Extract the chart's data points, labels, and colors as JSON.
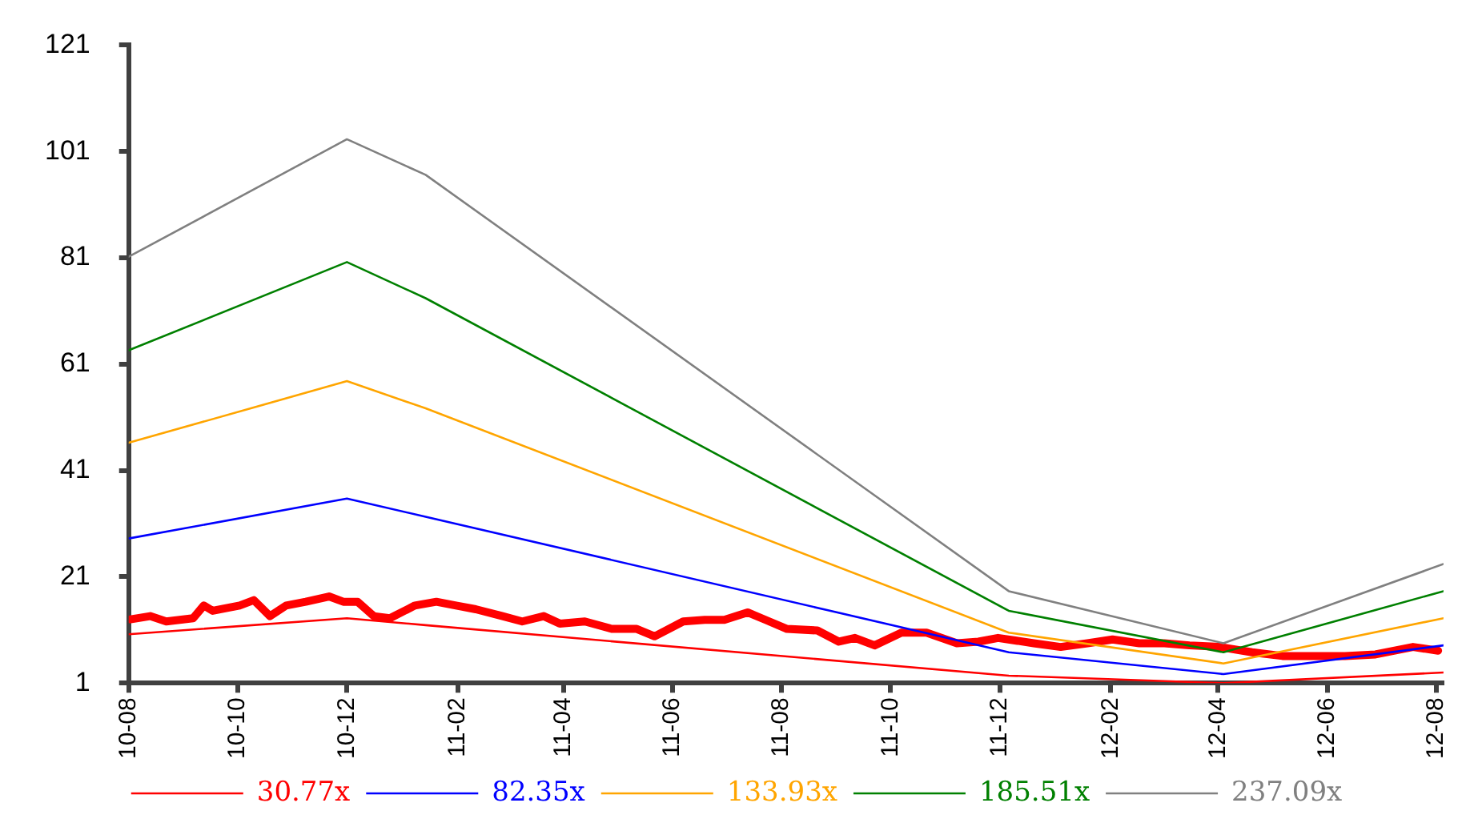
{
  "chart_data": {
    "type": "line",
    "legend": "bottom",
    "grid": false,
    "marker": "none",
    "line_style": "solid",
    "xlim": [
      "2010-08-01",
      "2012-08-05"
    ],
    "ylim": [
      1,
      121
    ],
    "yticks": [
      1,
      21,
      41,
      61,
      81,
      101,
      121
    ],
    "xticks": [
      {
        "value": "2010-08-01",
        "label": "10-08"
      },
      {
        "value": "2010-10-01",
        "label": "10-10"
      },
      {
        "value": "2010-12-01",
        "label": "10-12"
      },
      {
        "value": "2011-02-01",
        "label": "11-02"
      },
      {
        "value": "2011-04-01",
        "label": "11-04"
      },
      {
        "value": "2011-06-01",
        "label": "11-06"
      },
      {
        "value": "2011-08-01",
        "label": "11-08"
      },
      {
        "value": "2011-10-01",
        "label": "11-10"
      },
      {
        "value": "2011-12-01",
        "label": "11-12"
      },
      {
        "value": "2012-02-01",
        "label": "12-02"
      },
      {
        "value": "2012-04-01",
        "label": "12-04"
      },
      {
        "value": "2012-06-01",
        "label": "12-06"
      },
      {
        "value": "2012-08-01",
        "label": "12-08"
      }
    ],
    "series": [
      {
        "color": "#ff0000",
        "x": [
          "2010-08-02",
          "2010-08-13",
          "2010-08-22",
          "2010-09-06",
          "2010-09-12",
          "2010-09-17",
          "2010-10-02",
          "2010-10-10",
          "2010-10-19",
          "2010-10-28",
          "2010-11-08",
          "2010-11-21",
          "2010-11-29",
          "2010-12-07",
          "2010-12-16",
          "2010-12-25",
          "2011-01-08",
          "2011-01-20",
          "2011-01-31",
          "2011-02-11",
          "2011-02-26",
          "2011-03-09",
          "2011-03-21",
          "2011-03-30",
          "2011-04-13",
          "2011-04-28",
          "2011-05-12",
          "2011-05-22",
          "2011-06-07",
          "2011-06-19",
          "2011-06-30",
          "2011-07-13",
          "2011-07-23",
          "2011-08-04",
          "2011-08-21",
          "2011-09-02",
          "2011-09-11",
          "2011-09-22",
          "2011-10-07",
          "2011-10-21",
          "2011-11-07",
          "2011-11-19",
          "2011-11-30",
          "2011-12-20",
          "2012-01-04",
          "2012-01-19",
          "2012-02-02",
          "2012-02-17",
          "2012-03-02",
          "2012-03-16",
          "2012-04-02",
          "2012-04-20",
          "2012-05-07",
          "2012-05-24",
          "2012-06-11",
          "2012-06-28",
          "2012-07-19",
          "2012-08-02"
        ],
        "values": [
          13.0,
          13.6,
          12.6,
          13.2,
          15.6,
          14.6,
          15.6,
          16.6,
          13.6,
          15.6,
          16.3,
          17.3,
          16.3,
          16.3,
          13.6,
          13.2,
          15.6,
          16.3,
          15.6,
          14.9,
          13.6,
          12.6,
          13.6,
          12.2,
          12.6,
          11.2,
          11.2,
          9.8,
          12.6,
          12.9,
          12.9,
          14.3,
          12.9,
          11.2,
          10.9,
          8.8,
          9.5,
          8.1,
          10.5,
          10.5,
          8.5,
          8.8,
          9.5,
          8.5,
          7.8,
          8.5,
          9.2,
          8.5,
          8.5,
          8.1,
          7.8,
          6.8,
          6.1,
          6.1,
          6.1,
          6.4,
          7.8,
          7.1
        ]
      },
      {
        "name": "30.77x",
        "color": "#ff0000",
        "x": [
          "2010-08-01",
          "2010-12-01",
          "2011-01-14",
          "2011-12-06",
          "2012-04-04",
          "2012-08-05"
        ],
        "values": [
          10.2,
          13.2,
          11.9,
          2.4,
          1,
          3
        ]
      },
      {
        "name": "82.35x",
        "color": "#0000ff",
        "x": [
          "2010-08-01",
          "2010-12-01",
          "2011-01-14",
          "2011-12-06",
          "2012-04-04",
          "2012-08-05"
        ],
        "values": [
          28.2,
          35.7,
          32.3,
          6.8,
          2.7,
          8.1
        ]
      },
      {
        "name": "133.93x",
        "color": "#ffa500",
        "x": [
          "2010-08-01",
          "2010-12-01",
          "2011-01-14",
          "2011-12-06",
          "2012-04-04",
          "2012-08-05"
        ],
        "values": [
          46.2,
          57.8,
          52.7,
          10.5,
          4.7,
          13.2
        ]
      },
      {
        "name": "185.51x",
        "color": "#008000",
        "x": [
          "2010-08-01",
          "2010-12-01",
          "2011-01-14",
          "2011-12-06",
          "2012-04-04",
          "2012-08-05"
        ],
        "values": [
          63.6,
          80.2,
          73.4,
          14.6,
          6.8,
          18.3
        ]
      },
      {
        "name": "237.09x",
        "color": "#808080",
        "x": [
          "2010-08-01",
          "2010-12-01",
          "2011-01-14",
          "2011-12-06",
          "2012-04-04",
          "2012-08-05"
        ],
        "values": [
          81.2,
          103.3,
          96.6,
          18.3,
          8.5,
          23.4
        ]
      }
    ]
  }
}
